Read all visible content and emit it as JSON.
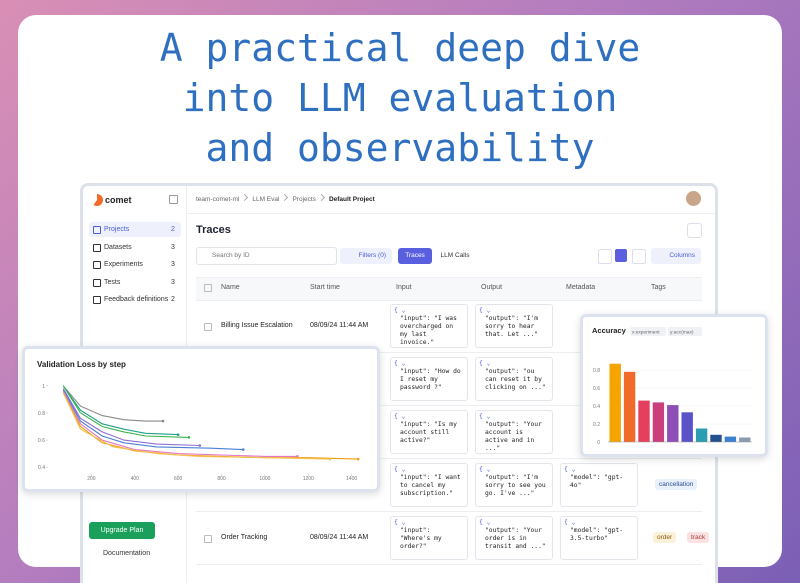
{
  "header": {
    "lines": [
      "A practical deep dive",
      "into LLM evaluation",
      "and observability"
    ]
  },
  "sidebar": {
    "brand": "comet",
    "nav": [
      {
        "label": "Projects",
        "count": 2
      },
      {
        "label": "Datasets",
        "count": 3
      },
      {
        "label": "Experiments",
        "count": 3
      },
      {
        "label": "Tests",
        "count": 3
      },
      {
        "label": "Feedback definitions",
        "count": 2
      }
    ],
    "upgrade": "Upgrade Plan",
    "docs": "Documentation"
  },
  "breadcrumb": [
    "team-comet-ml",
    "LLM Eval",
    "Projects",
    "Default Project"
  ],
  "page_title": "Traces",
  "toolbar": {
    "search": "Search by ID",
    "filters": "Filters (0)",
    "tabs": [
      "Traces",
      "LLM Calls"
    ],
    "columns": "Columns"
  },
  "table": {
    "columns": [
      "Name",
      "Start time",
      "Input",
      "Output",
      "Metadata",
      "Tags"
    ],
    "rows": [
      {
        "name": "Billing Issue Escalation",
        "start": "08/09/24 11:44 AM",
        "input": "\"input\": \"I was overcharged on my last invoice.\"",
        "output": "\"output\": \"I'm sorry to hear that. Let ...\""
      },
      {
        "input": "\"input\": \"How do I reset my password ?\"",
        "output": "\"output\": \"ou can reset it by clicking on ...\""
      },
      {
        "input": "\"input\": \"Is my account still active?\"",
        "output": "\"output\": \"Your account is active and in ...\""
      },
      {
        "input": "\"input\": \"I want to cancel my subscription.\"",
        "output": "\"output\": \"I'm sorry to see you go. I've ...\"",
        "metadata": "\"model\": \"gpt-4o\"",
        "tags": [
          "cancellation"
        ]
      },
      {
        "name": "Order Tracking",
        "start": "08/09/24 11:44 AM",
        "input": "\"input\": \"Where's my order?\"",
        "output": "\"output\": \"Your order is in transit and ...\"",
        "metadata": "\"model\": \"gpt-3.5-turbo\"",
        "tags": [
          "order",
          "track"
        ]
      }
    ]
  },
  "chart_data": [
    {
      "type": "line",
      "title": "Validation Loss by step",
      "xlim": [
        0,
        1480
      ],
      "ylim": [
        0.35,
        1.05
      ],
      "xticks": [
        200,
        400,
        600,
        800,
        1000,
        1200,
        1400
      ],
      "yticks": [
        1,
        0.8,
        0.6,
        0.4
      ],
      "series": [
        {
          "color": "#8a8a8a",
          "x": [
            70,
            150,
            250,
            350,
            450,
            530
          ],
          "values": [
            1.0,
            0.85,
            0.78,
            0.75,
            0.74,
            0.74
          ]
        },
        {
          "color": "#1f9e89",
          "x": [
            70,
            150,
            250,
            350,
            450,
            600
          ],
          "values": [
            1.0,
            0.82,
            0.72,
            0.68,
            0.65,
            0.64
          ]
        },
        {
          "color": "#3cb44b",
          "x": [
            70,
            150,
            250,
            350,
            450,
            650
          ],
          "values": [
            1.0,
            0.8,
            0.7,
            0.66,
            0.63,
            0.62
          ]
        },
        {
          "color": "#8a6fd1",
          "x": [
            70,
            150,
            250,
            350,
            500,
            700
          ],
          "values": [
            0.98,
            0.76,
            0.66,
            0.6,
            0.57,
            0.56
          ]
        },
        {
          "color": "#4a7fd8",
          "x": [
            70,
            150,
            250,
            350,
            500,
            750,
            900
          ],
          "values": [
            0.97,
            0.74,
            0.63,
            0.58,
            0.55,
            0.54,
            0.53
          ]
        },
        {
          "color": "#e377c2",
          "x": [
            70,
            150,
            250,
            400,
            600,
            800,
            1000,
            1150
          ],
          "values": [
            0.96,
            0.72,
            0.6,
            0.53,
            0.5,
            0.49,
            0.48,
            0.48
          ]
        },
        {
          "color": "#f39c12",
          "x": [
            70,
            150,
            250,
            400,
            600,
            800,
            1000,
            1200,
            1430
          ],
          "values": [
            0.95,
            0.7,
            0.58,
            0.52,
            0.49,
            0.48,
            0.47,
            0.47,
            0.46
          ]
        },
        {
          "color": "#f2c14e",
          "x": [
            70,
            150,
            300,
            500,
            700,
            1000,
            1300
          ],
          "values": [
            0.95,
            0.68,
            0.55,
            0.5,
            0.48,
            0.47,
            0.46
          ]
        }
      ]
    },
    {
      "type": "bar",
      "title": "Accuracy",
      "chips": [
        "x:experiment",
        "y:acc(max)"
      ],
      "ylim": [
        0,
        0.9
      ],
      "yticks": [
        0,
        0.2,
        0.4,
        0.6,
        0.8
      ],
      "categories": [
        null,
        null,
        null,
        null,
        null,
        null,
        null,
        null,
        null,
        null
      ],
      "values": [
        0.87,
        0.78,
        0.46,
        0.44,
        0.41,
        0.33,
        0.15,
        0.08,
        0.06,
        0.05
      ],
      "colors": [
        "#f5a400",
        "#f06b2a",
        "#e4405e",
        "#c9407c",
        "#8d4fb5",
        "#5a52c8",
        "#2a9db0",
        "#25508f",
        "#3a7fd0",
        "#8a9bb0"
      ]
    }
  ]
}
